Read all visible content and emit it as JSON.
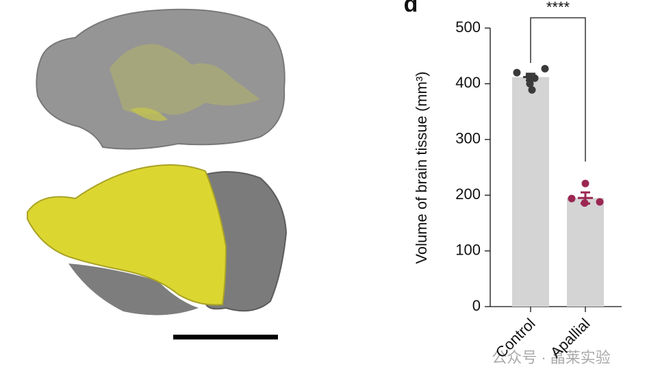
{
  "panel_label": "d",
  "watermark": "公众号 · 晶莱实验",
  "chart_data": {
    "type": "bar",
    "y_label": "Volume of brain tissue (mm³)",
    "categories": [
      "Control",
      "Apallial"
    ],
    "values": [
      412,
      195
    ],
    "errors": [
      6,
      10
    ],
    "points": [
      [
        420,
        427,
        413,
        410,
        400,
        389
      ],
      [
        221,
        194,
        188,
        186
      ]
    ],
    "color": "#d4d4d4",
    "point_colors": [
      "#3a3a3a",
      "#9b2752"
    ],
    "significance": "****",
    "ylim": [
      0,
      500
    ],
    "yticks": [
      0,
      100,
      200,
      300,
      400,
      500
    ]
  }
}
